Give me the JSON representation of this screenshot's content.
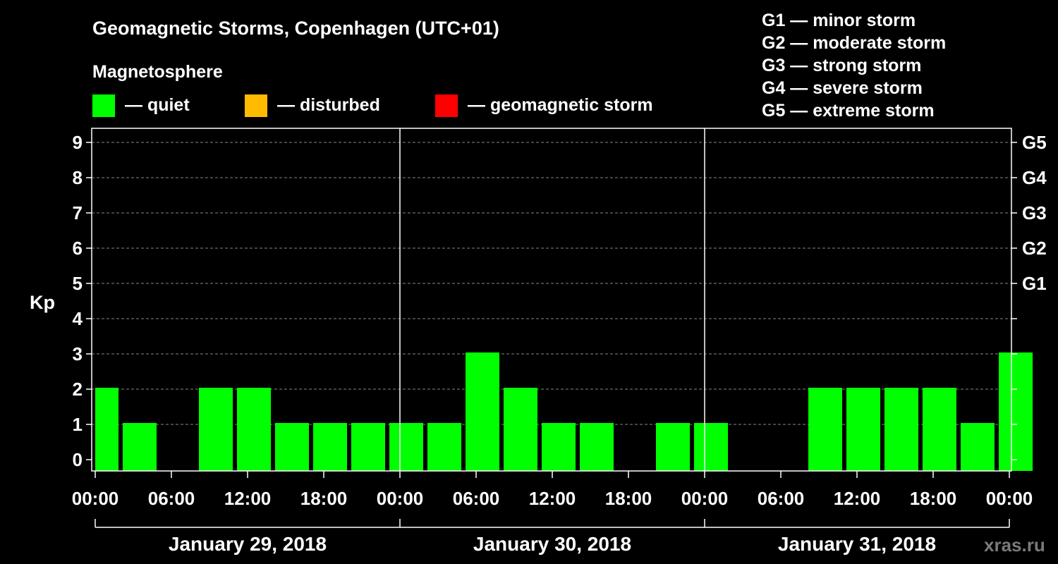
{
  "header": {
    "title": "Geomagnetic Storms, Copenhagen (UTC+01)",
    "legend_title": "Magnetosphere",
    "legend": [
      {
        "label": "— quiet",
        "color": "#00ff00"
      },
      {
        "label": "— disturbed",
        "color": "#ffbb00"
      },
      {
        "label": "— geomagnetic storm",
        "color": "#ff0000"
      }
    ],
    "storm_scale": [
      "G1 — minor storm",
      "G2 — moderate storm",
      "G3 — strong storm",
      "G4 — severe storm",
      "G5 — extreme storm"
    ]
  },
  "watermark": "xras.ru",
  "chart_data": {
    "type": "bar",
    "ylabel": "Kp",
    "ylim": [
      0,
      9
    ],
    "yticks": [
      0,
      1,
      2,
      3,
      4,
      5,
      6,
      7,
      8,
      9
    ],
    "right_axis": [
      {
        "value": 5,
        "label": "G1"
      },
      {
        "value": 6,
        "label": "G2"
      },
      {
        "value": 7,
        "label": "G3"
      },
      {
        "value": 8,
        "label": "G4"
      },
      {
        "value": 9,
        "label": "G5"
      }
    ],
    "xticks": [
      "00:00",
      "06:00",
      "12:00",
      "18:00",
      "00:00",
      "06:00",
      "12:00",
      "18:00",
      "00:00",
      "06:00",
      "12:00",
      "18:00",
      "00:00"
    ],
    "days": [
      "January 29, 2018",
      "January 30, 2018",
      "January 31, 2018"
    ],
    "grid": true,
    "bar_color": "#00ff00",
    "interval_hours": 3,
    "x_start_hour": -1,
    "bars": [
      {
        "start_hour": -1,
        "kp": 2
      },
      {
        "start_hour": 2,
        "kp": 1
      },
      {
        "start_hour": 5,
        "kp": 0
      },
      {
        "start_hour": 8,
        "kp": 2
      },
      {
        "start_hour": 11,
        "kp": 2
      },
      {
        "start_hour": 14,
        "kp": 1
      },
      {
        "start_hour": 17,
        "kp": 1
      },
      {
        "start_hour": 20,
        "kp": 1
      },
      {
        "start_hour": 23,
        "kp": 1
      },
      {
        "start_hour": 26,
        "kp": 1
      },
      {
        "start_hour": 29,
        "kp": 3
      },
      {
        "start_hour": 32,
        "kp": 2
      },
      {
        "start_hour": 35,
        "kp": 1
      },
      {
        "start_hour": 38,
        "kp": 1
      },
      {
        "start_hour": 41,
        "kp": 0
      },
      {
        "start_hour": 44,
        "kp": 1
      },
      {
        "start_hour": 47,
        "kp": 1
      },
      {
        "start_hour": 50,
        "kp": 0
      },
      {
        "start_hour": 53,
        "kp": 0
      },
      {
        "start_hour": 56,
        "kp": 2
      },
      {
        "start_hour": 59,
        "kp": 2
      },
      {
        "start_hour": 62,
        "kp": 2
      },
      {
        "start_hour": 65,
        "kp": 2
      },
      {
        "start_hour": 68,
        "kp": 1
      },
      {
        "start_hour": 71,
        "kp": 3
      }
    ]
  }
}
